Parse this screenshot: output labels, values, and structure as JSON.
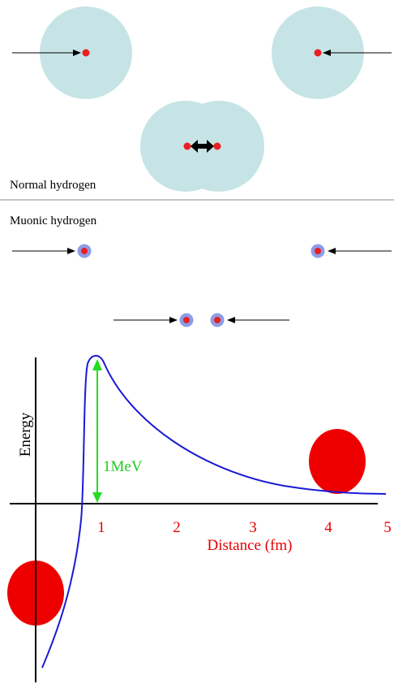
{
  "normal_label": "Normal hydrogen",
  "muonic_label": "Muonic hydrogen",
  "graph": {
    "y_label": "Energy",
    "x_label": "Distance (fm)",
    "x_tick_labels": [
      1,
      2,
      3,
      4,
      5
    ],
    "annotation": "1MeV"
  }
}
